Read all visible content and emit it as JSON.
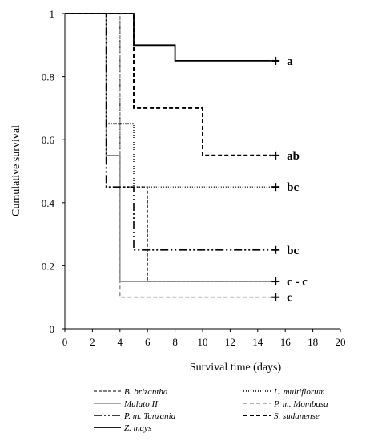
{
  "chart_data": {
    "type": "line",
    "title": "",
    "xlabel": "Survival time (days)",
    "ylabel": "Cumulative survival",
    "xlim": [
      0,
      20
    ],
    "ylim": [
      0,
      1
    ],
    "xticks": [
      "0",
      "2",
      "4",
      "6",
      "8",
      "10",
      "12",
      "14",
      "16",
      "18",
      "20"
    ],
    "yticks": [
      "0",
      "0.2",
      "0.4",
      "0.6",
      "0.8",
      "1"
    ],
    "grid": false,
    "legend_position": "bottom",
    "series": [
      {
        "name": "B. brizantha",
        "color": "#555555",
        "dash": "4,2",
        "width": 1.6,
        "steps": [
          [
            0,
            1
          ],
          [
            4,
            1
          ],
          [
            4,
            0.45
          ],
          [
            6,
            0.45
          ],
          [
            6,
            0.15
          ],
          [
            15,
            0.15
          ]
        ],
        "censor": null,
        "group_label": ""
      },
      {
        "name": "L. multiflorum",
        "color": "#000000",
        "dash": "1,2",
        "width": 1.4,
        "steps": [
          [
            0,
            1
          ],
          [
            3,
            1
          ],
          [
            3,
            0.65
          ],
          [
            5,
            0.65
          ],
          [
            5,
            0.45
          ],
          [
            15,
            0.45
          ]
        ],
        "censor": [
          15.3,
          0.45
        ],
        "group_label": "bc"
      },
      {
        "name": "Mulato II",
        "color": "#888888",
        "dash": "",
        "width": 1.6,
        "steps": [
          [
            0,
            1
          ],
          [
            3,
            1
          ],
          [
            3,
            0.55
          ],
          [
            4,
            0.55
          ],
          [
            4,
            0.15
          ],
          [
            15,
            0.15
          ]
        ],
        "censor": [
          15.3,
          0.15
        ],
        "group_label": "c - c"
      },
      {
        "name": "P. m. Mombasa",
        "color": "#999999",
        "dash": "5,3",
        "width": 1.6,
        "steps": [
          [
            0,
            1
          ],
          [
            4,
            1
          ],
          [
            4,
            0.1
          ],
          [
            15,
            0.1
          ]
        ],
        "censor": [
          15.3,
          0.1
        ],
        "group_label": "c"
      },
      {
        "name": "P. m. Tanzania",
        "color": "#000000",
        "dash": "10,3,2,3,2,3",
        "width": 1.6,
        "steps": [
          [
            0,
            1
          ],
          [
            3,
            1
          ],
          [
            3,
            0.45
          ],
          [
            5,
            0.45
          ],
          [
            5,
            0.25
          ],
          [
            15,
            0.25
          ]
        ],
        "censor": [
          15.3,
          0.25
        ],
        "group_label": "bc"
      },
      {
        "name": "S. sudanense",
        "color": "#000000",
        "dash": "5,3",
        "width": 2,
        "steps": [
          [
            0,
            1
          ],
          [
            5,
            1
          ],
          [
            5,
            0.7
          ],
          [
            10,
            0.7
          ],
          [
            10,
            0.55
          ],
          [
            15,
            0.55
          ]
        ],
        "censor": [
          15.3,
          0.55
        ],
        "group_label": "ab"
      },
      {
        "name": "Z. mays",
        "color": "#000000",
        "dash": "",
        "width": 1.8,
        "steps": [
          [
            0,
            1
          ],
          [
            5,
            1
          ],
          [
            5,
            0.9
          ],
          [
            8,
            0.9
          ],
          [
            8,
            0.85
          ],
          [
            15,
            0.85
          ]
        ],
        "censor": [
          15.3,
          0.85
        ],
        "group_label": "a"
      }
    ]
  }
}
